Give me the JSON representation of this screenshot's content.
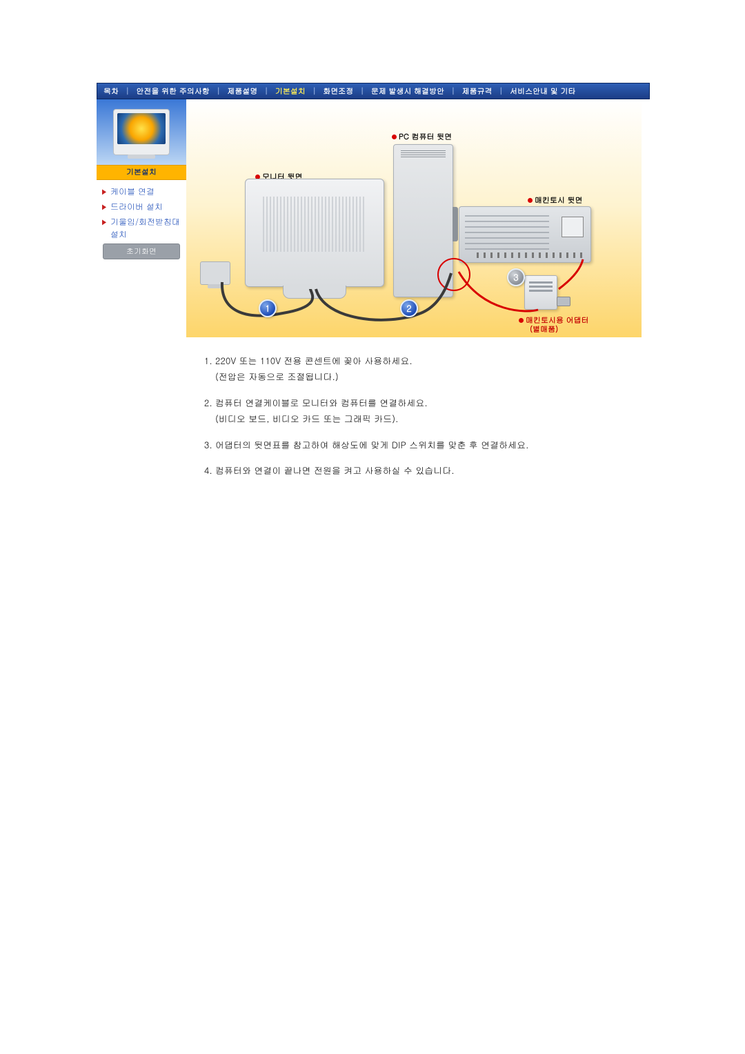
{
  "topnav": {
    "items": [
      {
        "label": "목차",
        "active": false
      },
      {
        "label": "안전을 위한 주의사항",
        "active": false
      },
      {
        "label": "제품설명",
        "active": false
      },
      {
        "label": "기본설치",
        "active": true
      },
      {
        "label": "화면조정",
        "active": false
      },
      {
        "label": "문제 발생시 해결방안",
        "active": false
      },
      {
        "label": "제품규격",
        "active": false
      },
      {
        "label": "서비스안내 및 기타",
        "active": false
      }
    ]
  },
  "sidebar": {
    "heading": "기본설치",
    "links": [
      {
        "label": "케이블 연결"
      },
      {
        "label": "드라이버 설치"
      },
      {
        "label": "기울임/회전받침대 설치"
      }
    ],
    "button": "초기화면"
  },
  "diagram": {
    "labels": {
      "monitor_rear": "모니터 뒷면",
      "pc_rear": "PC 컴퓨터 뒷면",
      "mac_rear": "매킨토시 뒷면",
      "adapter": "매킨토시용 어댑터",
      "adapter_note": "(별매품)"
    },
    "badges": {
      "one": "1",
      "two": "2",
      "three": "3"
    },
    "colors": {
      "accent_red": "#d80000",
      "badge_blue": "#1e4db8",
      "bg_gradient_top": "#ffffff",
      "bg_gradient_bottom": "#fdd56a"
    }
  },
  "instructions": {
    "items": [
      "220V 또는 110V 전용 콘센트에 꽂아 사용하세요.\n(전압은 자동으로 조절됩니다.)",
      "컴퓨터 연결케이블로 모니터와 컴퓨터를 연결하세요.\n(비디오 보드, 비디오 카드 또는 그래픽 카드).",
      "어댑터의 뒷면표를 참고하여 해상도에 맞게 DIP 스위치를 맞춘 후 연결하세요.",
      "컴퓨터와 연결이 끝나면 전원을 켜고 사용하실 수 있습니다."
    ]
  }
}
